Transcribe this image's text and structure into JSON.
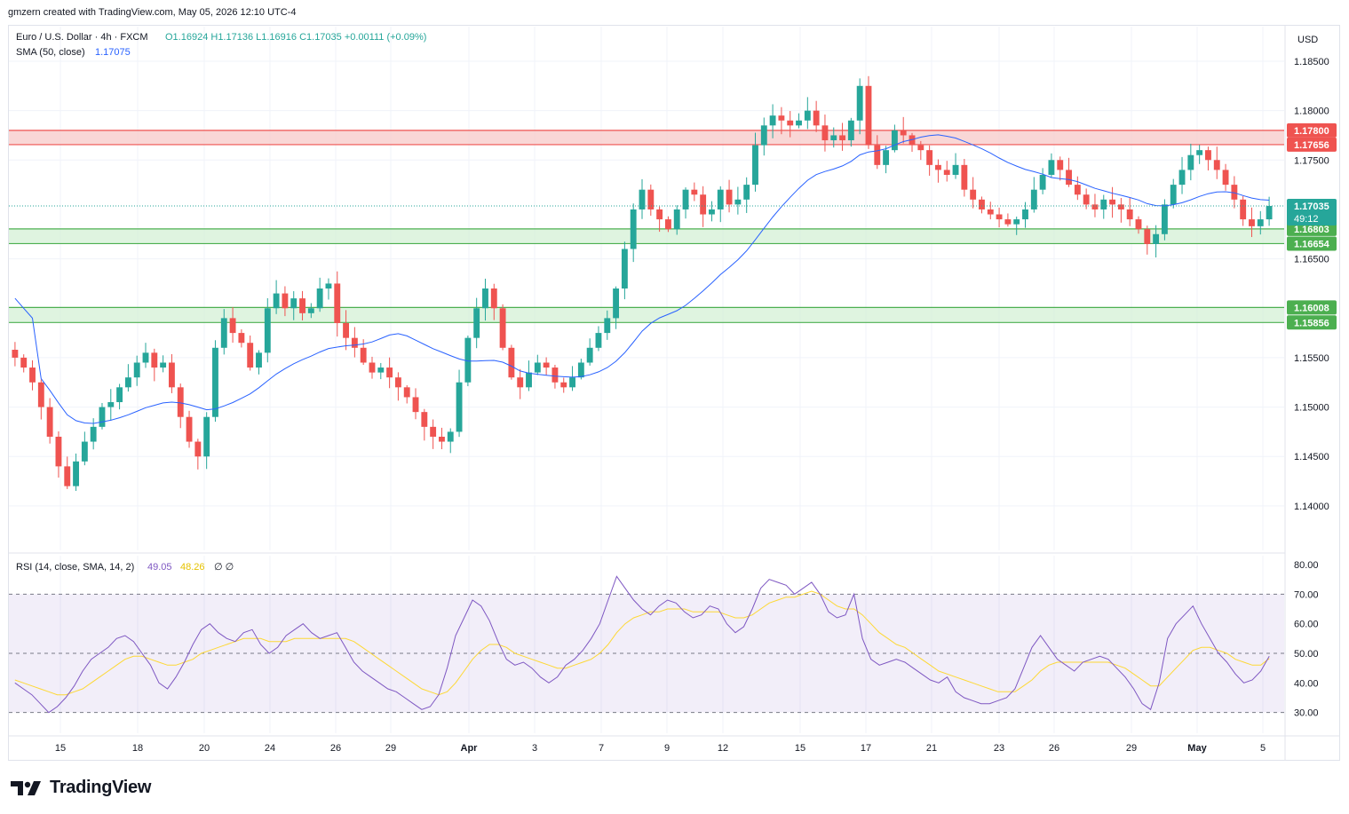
{
  "header": {
    "attribution": "gmzern created with TradingView.com, May 05, 2026 12:10 UTC-4"
  },
  "legend": {
    "symbol": "Euro / U.S. Dollar · 4h · FXCM",
    "ohlc": "O1.16924  H1.17136  L1.16916  C1.17035  +0.00111 (+0.09%)",
    "sma_label": "SMA (50, close)",
    "sma_value": "1.17075"
  },
  "rsi_legend": {
    "label": "RSI (14, close, SMA, 14, 2)",
    "rsi_value": "49.05",
    "sma_value": "48.26",
    "extras": "∅  ∅"
  },
  "currency": "USD",
  "logo_text": "TradingView",
  "colors": {
    "up": "#26a69a",
    "down": "#ef5350",
    "sma": "#2962ff",
    "rsi": "#7e57c2",
    "rsi_ma": "#fdd835",
    "resistance_fill": "#f7c6c5",
    "support_fill": "#d1efd3"
  },
  "chart_data": [
    {
      "type": "candlestick",
      "y_ticks": [
        "1.18500",
        "1.18000",
        "1.17500",
        "1.16500",
        "1.15500",
        "1.15000",
        "1.14500",
        "1.14000"
      ],
      "x_ticks": [
        "15",
        "18",
        "20",
        "24",
        "26",
        "29",
        "Apr",
        "3",
        "7",
        "9",
        "12",
        "15",
        "17",
        "21",
        "23",
        "26",
        "29",
        "May",
        "5"
      ],
      "ylim": [
        1.1355,
        1.1885
      ],
      "zones": [
        {
          "kind": "resistance",
          "top": 1.178,
          "bottom": 1.17656,
          "top_label": "1.17800",
          "bottom_label": "1.17656"
        },
        {
          "kind": "support",
          "top": 1.16803,
          "bottom": 1.16654,
          "top_label": "1.16803",
          "bottom_label": "1.16654"
        },
        {
          "kind": "support",
          "top": 1.16008,
          "bottom": 1.15856,
          "top_label": "1.16008",
          "bottom_label": "1.15856"
        }
      ],
      "last_price": {
        "value": 1.17035,
        "label": "1.17035",
        "countdown": "49:12"
      },
      "close_path": [
        1.155,
        1.154,
        1.1525,
        1.15,
        1.147,
        1.144,
        1.142,
        1.1445,
        1.1465,
        1.148,
        1.15,
        1.1505,
        1.152,
        1.153,
        1.1545,
        1.1555,
        1.154,
        1.1545,
        1.152,
        1.149,
        1.1465,
        1.145,
        1.149,
        1.156,
        1.159,
        1.1575,
        1.1565,
        1.154,
        1.1555,
        1.16,
        1.1615,
        1.16,
        1.161,
        1.1595,
        1.16,
        1.162,
        1.1625,
        1.1585,
        1.157,
        1.156,
        1.1545,
        1.1535,
        1.154,
        1.153,
        1.152,
        1.151,
        1.1495,
        1.148,
        1.147,
        1.1465,
        1.1475,
        1.1525,
        1.157,
        1.16,
        1.162,
        1.16,
        1.156,
        1.153,
        1.152,
        1.1535,
        1.1545,
        1.154,
        1.1525,
        1.152,
        1.153,
        1.1545,
        1.156,
        1.1575,
        1.159,
        1.162,
        1.166,
        1.17,
        1.172,
        1.17,
        1.169,
        1.168,
        1.17,
        1.172,
        1.1715,
        1.1695,
        1.17,
        1.172,
        1.1705,
        1.171,
        1.1725,
        1.1765,
        1.1785,
        1.1795,
        1.179,
        1.1785,
        1.179,
        1.18,
        1.1785,
        1.177,
        1.1775,
        1.177,
        1.179,
        1.1825,
        1.1765,
        1.1745,
        1.176,
        1.178,
        1.1775,
        1.1765,
        1.176,
        1.1745,
        1.174,
        1.1735,
        1.1745,
        1.172,
        1.171,
        1.17,
        1.1695,
        1.169,
        1.1685,
        1.169,
        1.17,
        1.172,
        1.1735,
        1.175,
        1.174,
        1.1725,
        1.1715,
        1.1705,
        1.17,
        1.171,
        1.1705,
        1.17,
        1.169,
        1.168,
        1.1665,
        1.1675,
        1.1705,
        1.1725,
        1.174,
        1.1755,
        1.176,
        1.175,
        1.174,
        1.1725,
        1.171,
        1.169,
        1.1683,
        1.169,
        1.17035
      ],
      "open_close_samples": [
        {
          "o": 1.1555,
          "c": 1.1545
        },
        {
          "o": 1.1465,
          "c": 1.1485
        }
      ],
      "overlay": {
        "name": "SMA (50, close)",
        "last": 1.17075
      }
    },
    {
      "type": "line",
      "y_ticks": [
        "80.00",
        "70.00",
        "60.00",
        "50.00",
        "40.00",
        "30.00"
      ],
      "ylim": [
        23,
        83
      ],
      "band": [
        30,
        70
      ],
      "midline": 50,
      "rsi": [
        40,
        38,
        36,
        33,
        30,
        32,
        35,
        39,
        44,
        48,
        50,
        52,
        55,
        56,
        54,
        50,
        46,
        40,
        38,
        42,
        47,
        53,
        58,
        60,
        57,
        55,
        54,
        57,
        58,
        53,
        50,
        52,
        56,
        58,
        60,
        57,
        55,
        56,
        57,
        52,
        47,
        44,
        42,
        40,
        38,
        37,
        35,
        33,
        31,
        32,
        36,
        45,
        56,
        62,
        68,
        66,
        61,
        54,
        48,
        46,
        47,
        45,
        42,
        40,
        42,
        46,
        48,
        51,
        55,
        60,
        68,
        76,
        72,
        68,
        65,
        63,
        66,
        68,
        67,
        64,
        62,
        63,
        66,
        65,
        60,
        57,
        59,
        65,
        72,
        75,
        74,
        73,
        70,
        72,
        74,
        70,
        64,
        62,
        63,
        70,
        55,
        48,
        46,
        47,
        48,
        47,
        45,
        43,
        41,
        40,
        42,
        37,
        35,
        34,
        33,
        33,
        34,
        35,
        38,
        45,
        52,
        56,
        52,
        48,
        46,
        44,
        47,
        48,
        49,
        48,
        45,
        42,
        38,
        33,
        31,
        40,
        55,
        60,
        63,
        66,
        60,
        55,
        50,
        47,
        43,
        40,
        41,
        44,
        49.05
      ],
      "rsi_ma": [
        41,
        40,
        39,
        38,
        37,
        36,
        36,
        37,
        38,
        40,
        42,
        44,
        46,
        48,
        49,
        49,
        48,
        47,
        46,
        46,
        47,
        48,
        50,
        51,
        52,
        53,
        54,
        55,
        55,
        55,
        54,
        54,
        54,
        55,
        55,
        55,
        55,
        55,
        55,
        55,
        54,
        52,
        50,
        48,
        46,
        44,
        42,
        40,
        38,
        37,
        36,
        37,
        40,
        44,
        48,
        51,
        53,
        53,
        52,
        50,
        49,
        48,
        47,
        46,
        45,
        45,
        46,
        47,
        48,
        50,
        53,
        57,
        60,
        62,
        63,
        64,
        64,
        65,
        65,
        65,
        64,
        64,
        64,
        64,
        63,
        62,
        62,
        63,
        65,
        67,
        68,
        69,
        69,
        70,
        71,
        70,
        68,
        66,
        65,
        65,
        63,
        60,
        57,
        55,
        53,
        52,
        50,
        48,
        46,
        44,
        43,
        42,
        41,
        40,
        39,
        38,
        37,
        37,
        37,
        39,
        41,
        44,
        46,
        47,
        47,
        47,
        47,
        47,
        47,
        47,
        46,
        45,
        43,
        41,
        39,
        39,
        42,
        45,
        48,
        51,
        52,
        52,
        51,
        50,
        48,
        47,
        46,
        46,
        48.26
      ]
    }
  ]
}
